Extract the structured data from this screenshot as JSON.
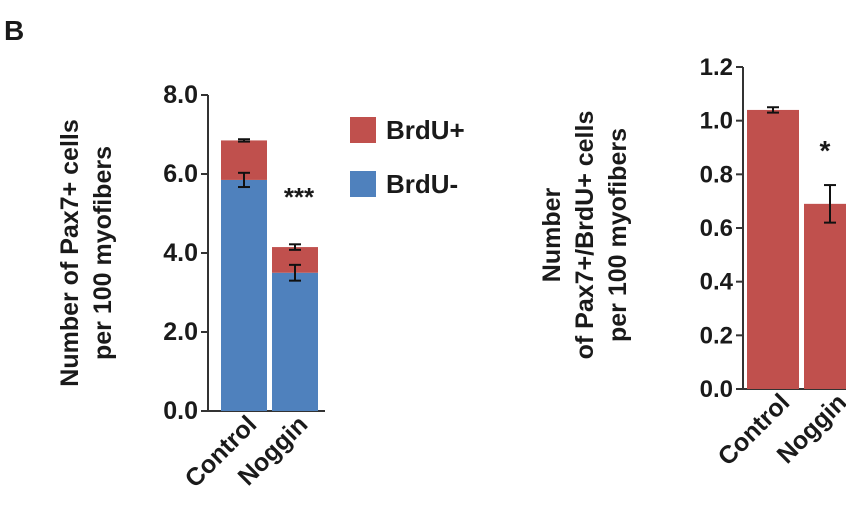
{
  "panel_label": "B",
  "colors": {
    "brdu_pos": "#C0504D",
    "brdu_neg": "#4F81BD",
    "axis": "#333333"
  },
  "chart_data": [
    {
      "type": "bar",
      "stacked": true,
      "categories": [
        "Control",
        "Noggin"
      ],
      "ylabel_lines": [
        "Number of Pax7+ cells",
        "per 100 myofibers"
      ],
      "ylim": [
        0,
        8
      ],
      "yticks": [
        "0.0",
        "2.0",
        "4.0",
        "6.0",
        "8.0"
      ],
      "series": [
        {
          "name": "BrdU-",
          "values": [
            5.85,
            3.5
          ],
          "errors": [
            0.18,
            0.2
          ]
        },
        {
          "name": "BrdU+",
          "values": [
            1.0,
            0.65
          ],
          "errors": [
            0.03,
            0.07
          ]
        }
      ],
      "annotations": [
        "",
        "***"
      ],
      "legend": "right"
    },
    {
      "type": "bar",
      "categories": [
        "Control",
        "Noggin"
      ],
      "ylabel_lines": [
        "Number",
        "of Pax7+/BrdU+ cells",
        "per 100 myofibers"
      ],
      "ylim": [
        0,
        1.2
      ],
      "yticks": [
        "0.0",
        "0.2",
        "0.4",
        "0.6",
        "0.8",
        "1.0",
        "1.2"
      ],
      "values": [
        1.04,
        0.69
      ],
      "errors": [
        0.01,
        0.07
      ],
      "annotations": [
        "",
        "*"
      ]
    }
  ]
}
